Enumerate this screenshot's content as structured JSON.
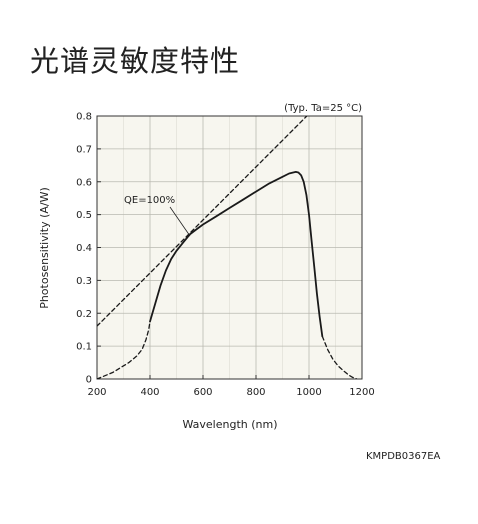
{
  "page_title": "光谱灵敏度特性",
  "document_code": "KMPDB0367EA",
  "chart_data": {
    "type": "line",
    "title": "",
    "condition_note": "(Typ. Ta=25 °C)",
    "xlabel": "Wavelength (nm)",
    "ylabel": "Photosensitivity (A/W)",
    "xlim": [
      200,
      1200
    ],
    "ylim": [
      0,
      0.8
    ],
    "x_ticks": [
      200,
      400,
      600,
      800,
      1000,
      1200
    ],
    "y_ticks": [
      0,
      0.1,
      0.2,
      0.3,
      0.4,
      0.5,
      0.6,
      0.7,
      0.8
    ],
    "x_tick_labels": [
      "200",
      "400",
      "600",
      "800",
      "1000",
      "1200"
    ],
    "y_tick_labels": [
      "0",
      "0.1",
      "0.2",
      "0.3",
      "0.4",
      "0.5",
      "0.6",
      "0.7",
      "0.8"
    ],
    "grid": true,
    "background_color": "#f7f6ef",
    "series": [
      {
        "name": "",
        "style": "solid",
        "x": [
          400,
          420,
          440,
          460,
          480,
          500,
          525,
          550,
          575,
          600,
          650,
          700,
          750,
          800,
          850,
          900,
          925,
          950,
          960,
          970,
          980,
          990,
          1000,
          1010,
          1020,
          1030,
          1040,
          1050
        ],
        "y": [
          0.175,
          0.23,
          0.285,
          0.33,
          0.365,
          0.39,
          0.415,
          0.44,
          0.455,
          0.47,
          0.495,
          0.52,
          0.545,
          0.57,
          0.595,
          0.615,
          0.625,
          0.63,
          0.628,
          0.62,
          0.6,
          0.56,
          0.5,
          0.42,
          0.34,
          0.26,
          0.19,
          0.13
        ]
      },
      {
        "name": "",
        "style": "dashed",
        "x": [
          200,
          230,
          260,
          290,
          320,
          350,
          370,
          385,
          395,
          400
        ],
        "y": [
          0.0,
          0.01,
          0.02,
          0.035,
          0.05,
          0.07,
          0.09,
          0.12,
          0.15,
          0.175
        ]
      },
      {
        "name": "",
        "style": "dashed",
        "x": [
          1050,
          1070,
          1090,
          1110,
          1130,
          1150,
          1165,
          1180
        ],
        "y": [
          0.13,
          0.09,
          0.06,
          0.04,
          0.025,
          0.012,
          0.005,
          0.0
        ]
      },
      {
        "name": "QE=100%",
        "style": "dashed",
        "x": [
          200,
          1200
        ],
        "y": [
          0.161,
          0.968
        ]
      }
    ],
    "annotations": [
      {
        "text": "QE=100%",
        "x": 460,
        "y": 0.52
      }
    ]
  }
}
